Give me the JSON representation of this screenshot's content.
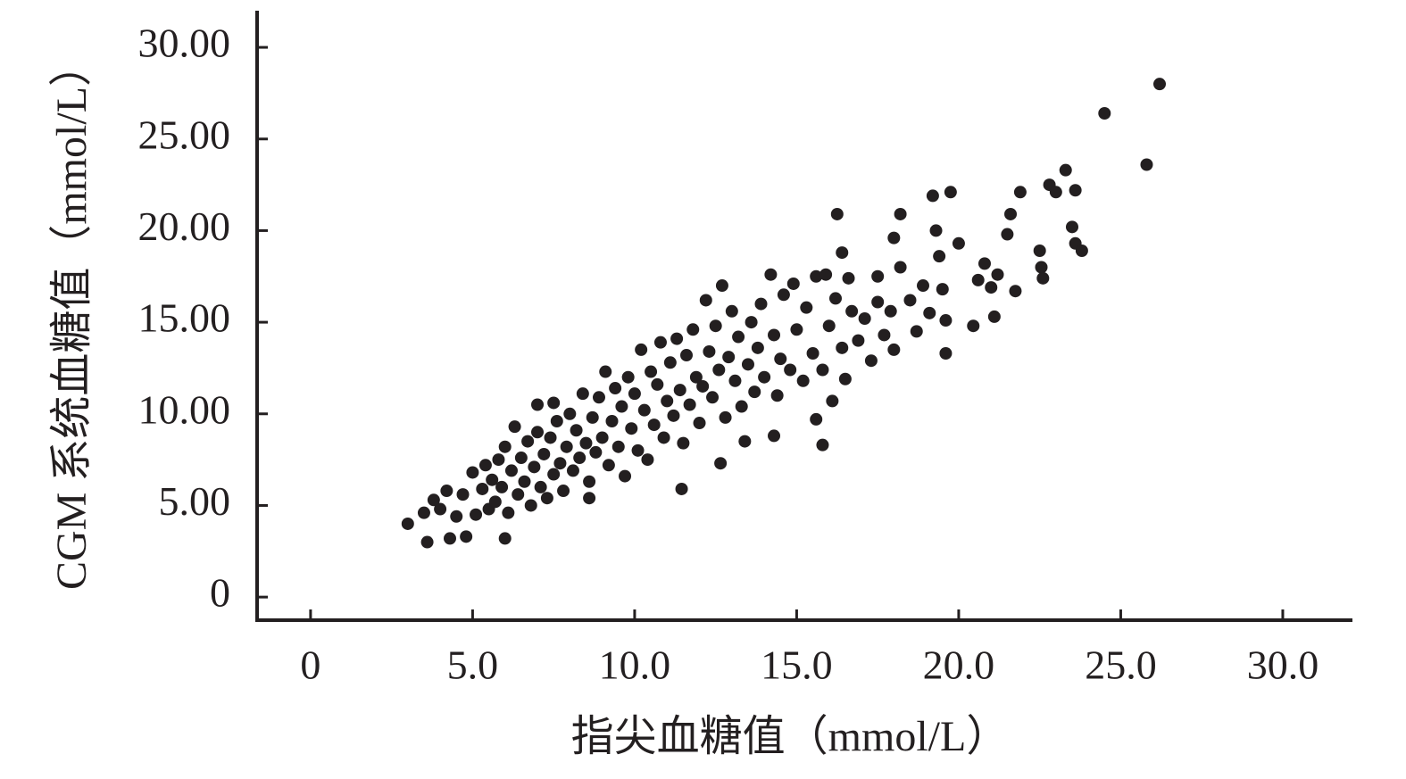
{
  "chart_data": {
    "type": "scatter",
    "x_label": "指尖血糖值（mmol/L）",
    "y_label": "CGM 系统血糖值（mmol/L）",
    "color": "#231f20",
    "xlim": [
      -1.65,
      32.15
    ],
    "ylim": [
      -1.26,
      32
    ],
    "xticks": [
      0,
      {
        "value": 5,
        "label": "5.0"
      },
      {
        "value": 10,
        "label": "10.0"
      },
      {
        "value": 15,
        "label": "15.0"
      },
      {
        "value": 20,
        "label": "20.0"
      },
      {
        "value": 25,
        "label": "25.0"
      },
      {
        "value": 30,
        "label": "30.0"
      }
    ],
    "yticks": [
      0,
      {
        "value": 5,
        "label": "5.00"
      },
      {
        "value": 10,
        "label": "10.00"
      },
      {
        "value": 15,
        "label": "15.00"
      },
      {
        "value": 20,
        "label": "20.00"
      },
      {
        "value": 25,
        "label": "25.00"
      },
      {
        "value": 30,
        "label": "30.00"
      }
    ],
    "x": [
      26.2,
      24.5,
      25.8,
      23.3,
      22.8,
      23.0,
      23.6,
      21.9,
      19.75,
      19.2,
      16.25,
      18.2,
      21.6,
      23.5,
      23.6,
      23.8,
      22.5,
      21.5,
      16.4,
      22.55,
      22.6,
      21.75,
      21.1,
      20.45,
      19.6,
      15.8,
      15.6,
      16.1,
      11.45,
      12.65,
      14.3,
      3.6,
      3.0,
      4.3,
      4.8,
      6.0,
      8.6,
      7.0,
      7.5,
      3.5,
      3.8,
      4.0,
      4.2,
      4.5,
      4.7,
      5.0,
      5.1,
      5.3,
      5.4,
      5.5,
      5.6,
      5.7,
      5.8,
      5.9,
      6.0,
      6.1,
      6.2,
      6.3,
      6.4,
      6.5,
      6.6,
      6.7,
      6.8,
      6.9,
      7.0,
      7.1,
      7.2,
      7.3,
      7.4,
      7.5,
      7.6,
      7.7,
      7.8,
      7.9,
      8.0,
      8.1,
      8.2,
      8.3,
      8.4,
      8.5,
      8.6,
      8.7,
      8.8,
      8.9,
      9.0,
      9.1,
      9.2,
      9.3,
      9.4,
      9.5,
      9.6,
      9.7,
      9.8,
      9.9,
      10.0,
      10.1,
      10.2,
      10.3,
      10.4,
      10.5,
      10.6,
      10.7,
      10.8,
      10.9,
      11.0,
      11.1,
      11.2,
      11.3,
      11.4,
      11.5,
      11.6,
      11.7,
      11.8,
      11.9,
      12.0,
      12.1,
      12.2,
      12.3,
      12.4,
      12.5,
      12.6,
      12.7,
      12.8,
      12.9,
      13.0,
      13.1,
      13.2,
      13.3,
      13.4,
      13.5,
      13.6,
      13.7,
      13.8,
      13.9,
      14.0,
      14.2,
      14.3,
      14.4,
      14.5,
      14.6,
      14.8,
      14.9,
      15.0,
      15.2,
      15.3,
      15.5,
      15.6,
      15.8,
      16.0,
      16.2,
      16.4,
      16.5,
      16.7,
      16.9,
      17.1,
      17.3,
      17.5,
      17.7,
      17.9,
      18.0,
      18.2,
      18.5,
      18.7,
      18.9,
      19.1,
      19.3,
      19.4,
      19.5,
      19.6,
      20.0,
      20.6,
      20.8,
      21.0,
      21.2,
      18.0,
      17.5,
      16.6,
      15.9
    ],
    "values": [
      28.0,
      26.4,
      23.6,
      23.3,
      22.5,
      22.1,
      22.2,
      22.1,
      22.1,
      21.9,
      20.9,
      20.9,
      20.9,
      20.2,
      19.3,
      18.9,
      18.9,
      19.8,
      18.8,
      18.0,
      17.4,
      16.7,
      15.3,
      14.8,
      13.3,
      8.3,
      9.7,
      10.7,
      5.9,
      7.3,
      8.8,
      3.0,
      4.0,
      3.2,
      3.3,
      3.2,
      5.4,
      10.5,
      10.6,
      4.6,
      5.3,
      4.8,
      5.8,
      4.4,
      5.6,
      6.8,
      4.5,
      5.9,
      7.2,
      4.8,
      6.4,
      5.2,
      7.5,
      6.0,
      8.2,
      4.6,
      6.9,
      9.3,
      5.6,
      7.6,
      6.3,
      8.5,
      5.0,
      7.1,
      9.0,
      6.0,
      7.8,
      5.4,
      8.7,
      6.7,
      9.6,
      7.3,
      5.8,
      8.2,
      10.0,
      6.9,
      9.1,
      7.6,
      11.1,
      8.4,
      6.3,
      9.8,
      7.9,
      10.9,
      8.7,
      12.3,
      7.2,
      9.6,
      11.4,
      8.2,
      10.4,
      6.6,
      12.0,
      9.2,
      11.1,
      8.0,
      13.5,
      10.2,
      7.5,
      12.3,
      9.4,
      11.6,
      13.9,
      8.7,
      10.7,
      12.8,
      9.9,
      14.1,
      11.3,
      8.4,
      13.2,
      10.5,
      14.6,
      12.0,
      9.5,
      11.5,
      16.2,
      13.4,
      10.9,
      14.8,
      12.4,
      17.0,
      9.8,
      13.1,
      15.6,
      11.8,
      14.2,
      10.4,
      8.5,
      12.7,
      15.0,
      11.2,
      13.6,
      16.0,
      12.0,
      17.6,
      14.3,
      11.0,
      13.0,
      16.5,
      12.4,
      17.1,
      14.6,
      11.8,
      15.8,
      13.3,
      17.5,
      12.4,
      14.8,
      16.3,
      13.6,
      11.9,
      15.6,
      14.0,
      15.2,
      12.9,
      16.1,
      14.3,
      15.6,
      13.5,
      18.0,
      16.2,
      14.5,
      17.0,
      15.5,
      20.0,
      18.6,
      16.8,
      15.1,
      19.3,
      17.3,
      18.2,
      16.9,
      17.6,
      19.6,
      17.5,
      17.4,
      17.6
    ]
  }
}
